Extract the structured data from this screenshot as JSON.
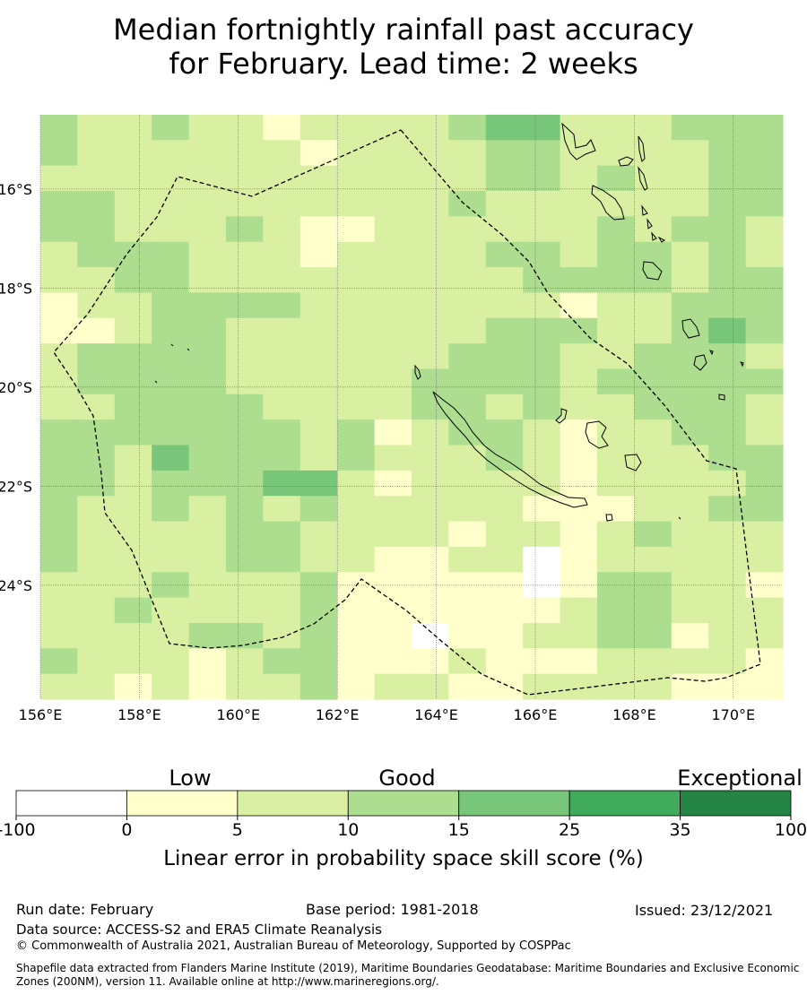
{
  "title": {
    "line1": "Median fortnightly rainfall past accuracy",
    "line2": "for February. Lead time: 2 weeks"
  },
  "chart_data": {
    "type": "heatmap",
    "title": "Median fortnightly rainfall past accuracy for February. Lead time: 2 weeks",
    "x_axis": {
      "range": [
        156,
        171
      ],
      "ticks": [
        156,
        158,
        160,
        162,
        164,
        166,
        168,
        170
      ],
      "tick_labels": [
        "156°E",
        "158°E",
        "160°E",
        "162°E",
        "164°E",
        "166°E",
        "168°E",
        "170°E"
      ]
    },
    "y_axis": {
      "range": [
        -26.3,
        -14.5
      ],
      "ticks": [
        -16,
        -18,
        -20,
        -22,
        -24
      ],
      "tick_labels": [
        "16°S",
        "18°S",
        "20°S",
        "22°S",
        "24°S"
      ]
    },
    "grid": true,
    "category_legend": [
      {
        "code": "W",
        "range": "-100 to 0"
      },
      {
        "code": "Y",
        "range": "0 to 5"
      },
      {
        "code": "L",
        "range": "5 to 10"
      },
      {
        "code": "M",
        "range": "10 to 15"
      },
      {
        "code": "D",
        "range": "15 to 25"
      }
    ],
    "grid_cells": [
      "MLLMLLYLLLLMDDLLLMMM",
      "MLLLLLLYLLLLMMLLLLMM",
      "LLLLLLLLLLLLMMLMLLMM",
      "MMLLLLLLLLLMLLLLLLMM",
      "MMLLLMLYYLLLLLLMLMML",
      "LMMMLLLYLLLLMMLMMLML",
      "LLMMLLLLLLLLLMMMMLMM",
      "YLLMMMMLLLLLLLYLLMMM",
      "YYLMMLLLLLLLMMMLLMDM",
      "LMMMMLLLLLLMMMLLMMML",
      "LMMMMLLLLLMMMMLMMMMM",
      "LLMMMMLLLLMMLMLLMMML",
      "MMMMMMMLMYLMMLYLLMML",
      "MMLDMMMLMLLLMLYLLLMM",
      "MMLMMMDDLYLLLLYLLLLM",
      "MLLMLMLMLLLLLYYYLLMM",
      "MLLLLMMLLLLYLLYLMLLL",
      "MLLLLMMLLYYLLWYLLLLL",
      "LLLMLLLMYYYYYWYMMLLY",
      "LLMLLLLMYYYYYYLMMLLL",
      "LLLLMMLMYYWYYLLMMYLL",
      "MLLLYLMMYYYLYYYLLLLY",
      "LLYLYLLMYLLYYLLLLYYY"
    ],
    "annotations": [
      "Dashed boundary: maritime boundary (EEZ 200NM)",
      "Coastlines: New Caledonia, Vanuatu, Loyalty Islands"
    ],
    "colorbar": {
      "label": "Linear error in probability space skill score (%)",
      "boundaries": [
        -100,
        0,
        5,
        10,
        15,
        25,
        35,
        100
      ],
      "colors": [
        "#ffffff",
        "#ffffcc",
        "#d9f0a3",
        "#addd8e",
        "#78c679",
        "#41ab5d",
        "#238443"
      ],
      "category_labels": [
        "Low",
        "Good",
        "Exceptional"
      ]
    }
  },
  "footer": {
    "run_date": "Run date: February",
    "base_period": "Base period: 1981-2018",
    "issued": "Issued: 23/12/2021",
    "data_source": "Data source: ACCESS-S2 and ERA5 Climate Reanalysis",
    "copyright": "© Commonwealth of Australia 2021, Australian Bureau of Meteorology, Supported by COSPPac",
    "shapefile": "Shapefile data extracted from Flanders Marine Institute (2019), Maritime Boundaries Geodatabase: Maritime Boundaries and Exclusive Economic Zones (200NM), version 11. Available online at http://www.marineregions.org/."
  }
}
